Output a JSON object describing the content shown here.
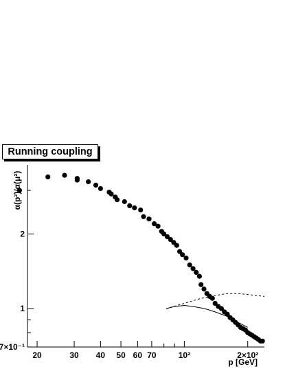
{
  "chart_data": {
    "type": "scatter",
    "title": "Running coupling",
    "xlabel": "p [GeV]",
    "ylabel": "α(p²)/α(μ²)",
    "xscale": "log",
    "yscale": "log",
    "xlim": [
      18,
      240
    ],
    "ylim": [
      0.7,
      3.8
    ],
    "x_ticks": [
      {
        "value": 20,
        "label": "20"
      },
      {
        "value": 30,
        "label": "30"
      },
      {
        "value": 40,
        "label": "40"
      },
      {
        "value": 50,
        "label": "50"
      },
      {
        "value": 60,
        "label": "60"
      },
      {
        "value": 70,
        "label": "70"
      },
      {
        "value": 100,
        "label": "10²"
      },
      {
        "value": 200,
        "label": "2×10²"
      }
    ],
    "y_ticks": [
      {
        "value": 0.7,
        "label": "7×10⁻¹"
      },
      {
        "value": 1,
        "label": "1"
      },
      {
        "value": 2,
        "label": "2"
      }
    ],
    "grid": false,
    "series": [
      {
        "marker": "filled-circle",
        "color": "#000000",
        "points": [
          [
            16.5,
            3.0
          ],
          [
            22.5,
            3.4
          ],
          [
            27.0,
            3.45
          ],
          [
            31.0,
            3.35
          ],
          [
            31.0,
            3.3
          ],
          [
            35.0,
            3.25
          ],
          [
            38.0,
            3.15
          ],
          [
            40.0,
            3.05
          ],
          [
            44.0,
            2.95
          ],
          [
            45.0,
            2.9
          ],
          [
            47.0,
            2.82
          ],
          [
            48.0,
            2.75
          ],
          [
            52.0,
            2.7
          ],
          [
            55.0,
            2.6
          ],
          [
            58.0,
            2.55
          ],
          [
            62.0,
            2.5
          ],
          [
            64.0,
            2.35
          ],
          [
            68.0,
            2.3
          ],
          [
            72.0,
            2.2
          ],
          [
            75.0,
            2.15
          ],
          [
            78.0,
            2.05
          ],
          [
            80.0,
            2.0
          ],
          [
            83.0,
            1.95
          ],
          [
            86.0,
            1.9
          ],
          [
            89.0,
            1.85
          ],
          [
            92.0,
            1.8
          ],
          [
            95.0,
            1.7
          ],
          [
            98.0,
            1.65
          ],
          [
            102.0,
            1.6
          ],
          [
            106.0,
            1.5
          ],
          [
            110.0,
            1.45
          ],
          [
            114.0,
            1.4
          ],
          [
            118.0,
            1.35
          ],
          [
            120.0,
            1.25
          ],
          [
            124.0,
            1.2
          ],
          [
            128.0,
            1.15
          ],
          [
            132.0,
            1.12
          ],
          [
            136.0,
            1.1
          ],
          [
            140.0,
            1.05
          ],
          [
            145.0,
            1.02
          ],
          [
            150.0,
            1.0
          ],
          [
            155.0,
            0.97
          ],
          [
            160.0,
            0.95
          ],
          [
            165.0,
            0.92
          ],
          [
            170.0,
            0.9
          ],
          [
            175.0,
            0.88
          ],
          [
            180.0,
            0.86
          ],
          [
            185.0,
            0.84
          ],
          [
            190.0,
            0.83
          ],
          [
            195.0,
            0.82
          ],
          [
            200.0,
            0.8
          ],
          [
            205.0,
            0.79
          ],
          [
            210.0,
            0.78
          ],
          [
            215.0,
            0.77
          ],
          [
            220.0,
            0.76
          ],
          [
            225.0,
            0.75
          ],
          [
            230.0,
            0.74
          ],
          [
            235.0,
            0.74
          ]
        ]
      },
      {
        "line_style": "dashed",
        "color": "#000000",
        "points": [
          [
            82,
            1.0
          ],
          [
            100,
            1.05
          ],
          [
            120,
            1.1
          ],
          [
            140,
            1.13
          ],
          [
            160,
            1.15
          ],
          [
            180,
            1.15
          ],
          [
            200,
            1.14
          ],
          [
            220,
            1.13
          ],
          [
            240,
            1.12
          ]
        ]
      },
      {
        "line_style": "solid",
        "color": "#000000",
        "points": [
          [
            82,
            1.0
          ],
          [
            90,
            1.02
          ],
          [
            100,
            1.03
          ],
          [
            110,
            1.02
          ],
          [
            125,
            1.0
          ],
          [
            140,
            0.97
          ],
          [
            160,
            0.93
          ],
          [
            180,
            0.88
          ],
          [
            200,
            0.84
          ]
        ]
      }
    ]
  }
}
